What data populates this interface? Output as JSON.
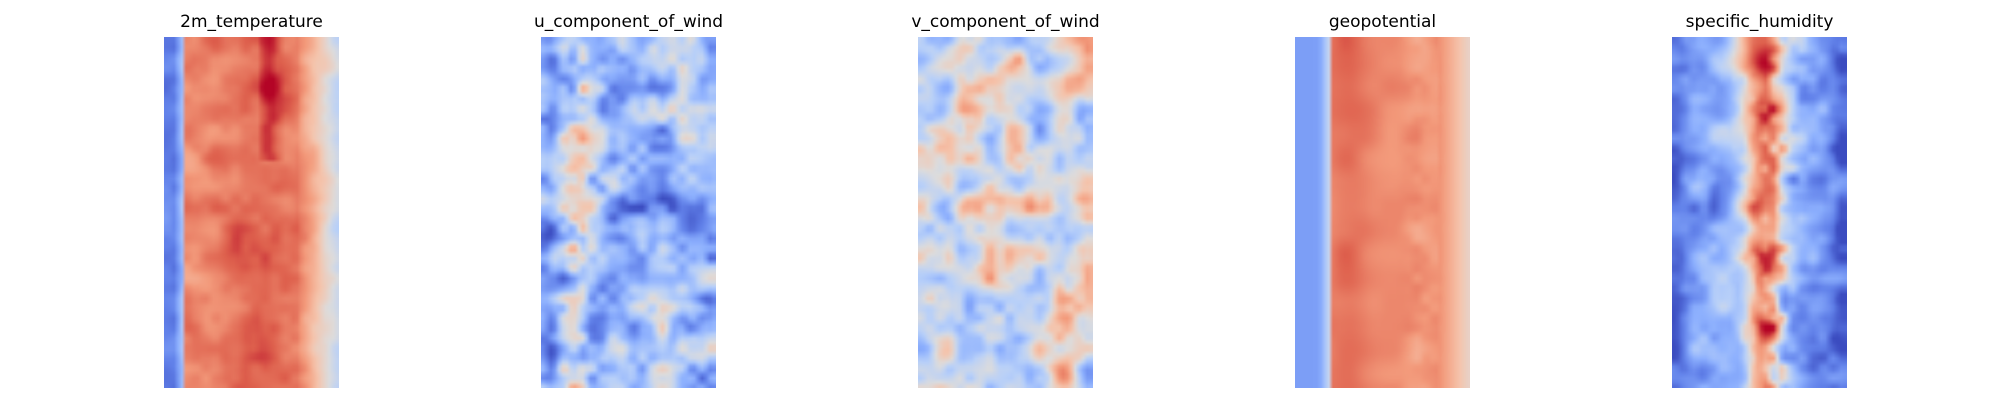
{
  "figure": {
    "colormap": "coolwarm",
    "colormap_stops": [
      "#3b4cc0",
      "#6282ea",
      "#8db0fe",
      "#b8d0f9",
      "#dddcdc",
      "#f5c4ac",
      "#f39a7b",
      "#de604d",
      "#b40426"
    ]
  },
  "panels": [
    {
      "title": "2m_temperature",
      "pattern": "temperature"
    },
    {
      "title": "u_component_of_wind",
      "pattern": "u_wind"
    },
    {
      "title": "v_component_of_wind",
      "pattern": "v_wind"
    },
    {
      "title": "geopotential",
      "pattern": "geopotential"
    },
    {
      "title": "specific_humidity",
      "pattern": "humidity"
    }
  ]
}
